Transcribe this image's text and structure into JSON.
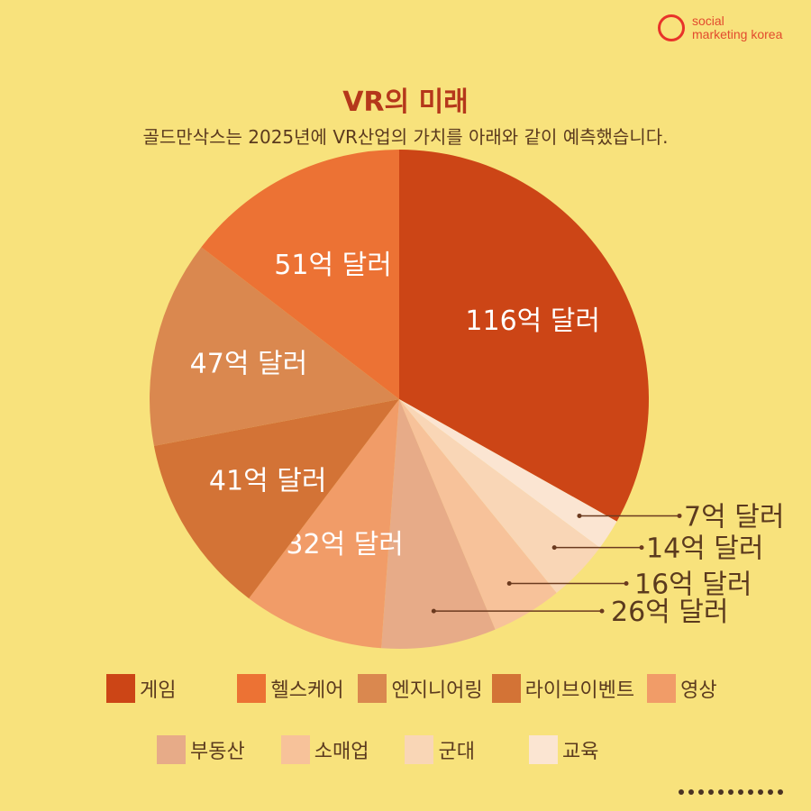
{
  "brand": {
    "line1": "social",
    "line2": "marketing korea"
  },
  "title": "VR의 미래",
  "subtitle": "골드만삭스는 2025년에 VR산업의 가치를 아래와 같이 예측했습니다.",
  "chart_data": {
    "type": "pie",
    "unit": "억 달러",
    "slices": [
      {
        "category": "게임",
        "value": 116,
        "label": "116억 달러",
        "color": "#cc4516"
      },
      {
        "category": "교육",
        "value": 7,
        "label": "7억 달러",
        "color": "#fbe5d2"
      },
      {
        "category": "군대",
        "value": 14,
        "label": "14억 달러",
        "color": "#f9d6b6"
      },
      {
        "category": "소매업",
        "value": 16,
        "label": "16억 달러",
        "color": "#f7c29a"
      },
      {
        "category": "부동산",
        "value": 26,
        "label": "26억 달러",
        "color": "#e7ab88"
      },
      {
        "category": "영상",
        "value": 32,
        "label": "32억 달러",
        "color": "#f19c68"
      },
      {
        "category": "라이브이벤트",
        "value": 41,
        "label": "41억 달러",
        "color": "#d37336"
      },
      {
        "category": "엔지니어링",
        "value": 47,
        "label": "47억 달러",
        "color": "#da884f"
      },
      {
        "category": "헬스케어",
        "value": 51,
        "label": "51억 달러",
        "color": "#ec7234"
      }
    ]
  },
  "legend": {
    "row1": [
      {
        "label": "게임",
        "color": "#cc4516"
      },
      {
        "label": "헬스케어",
        "color": "#ec7234"
      },
      {
        "label": "엔지니어링",
        "color": "#da884f"
      },
      {
        "label": "라이브이벤트",
        "color": "#d37336"
      },
      {
        "label": "영상",
        "color": "#f19c68"
      }
    ],
    "row2": [
      {
        "label": "부동산",
        "color": "#e7ab88"
      },
      {
        "label": "소매업",
        "color": "#f7c29a"
      },
      {
        "label": "군대",
        "color": "#f9d6b6"
      },
      {
        "label": "교육",
        "color": "#fbe5d2"
      }
    ]
  }
}
